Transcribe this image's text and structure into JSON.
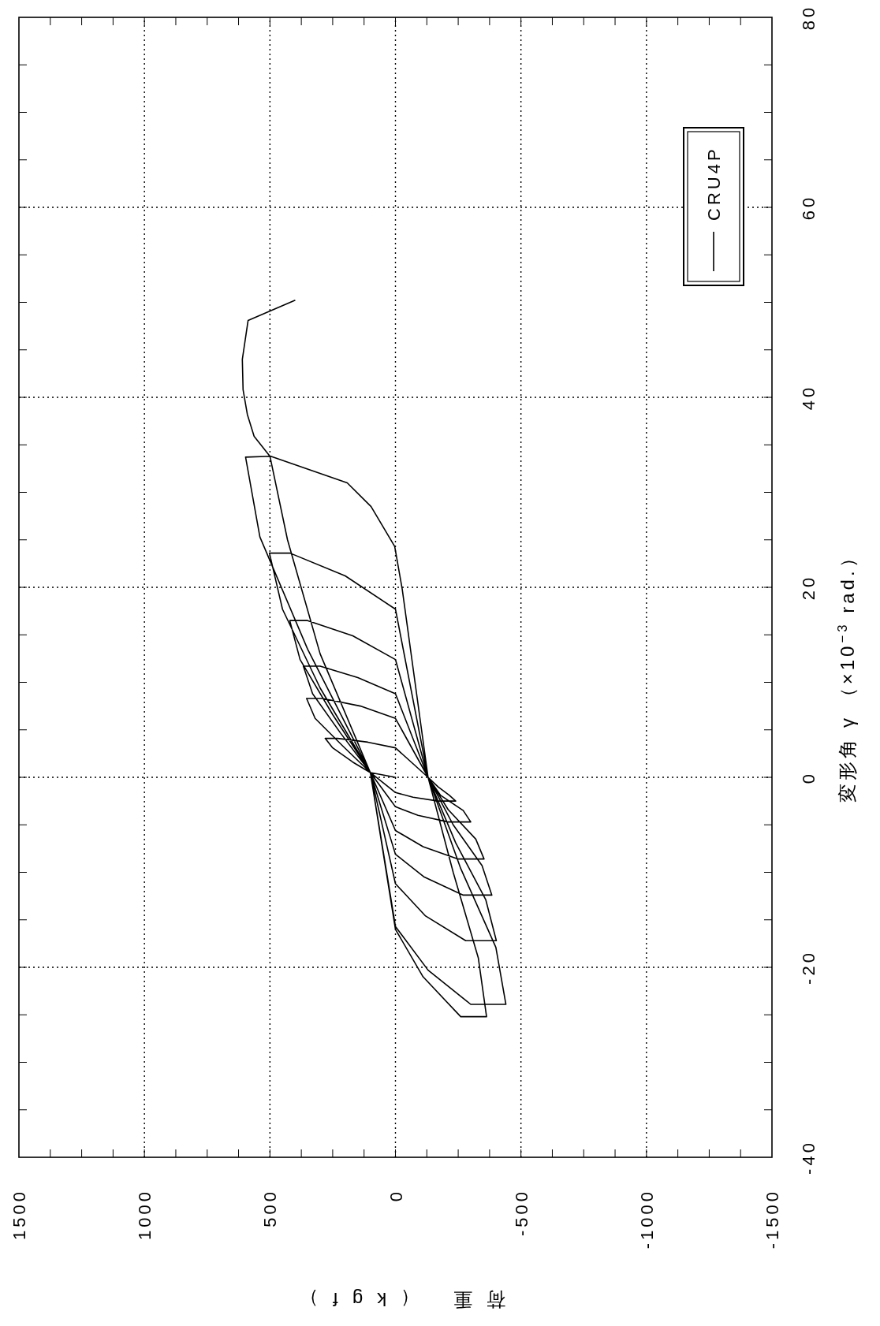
{
  "chart_data": {
    "type": "line",
    "xlabel": "荷重 （kgf）",
    "ylabel": "変形角 γ （×10$^{−3}$ rad.）",
    "xlim": [
      1500,
      -1500
    ],
    "ylim": [
      -40,
      80
    ],
    "xticks": [
      1500,
      {
        "value": 1375,
        "label": null
      },
      {
        "value": 1250,
        "label": null
      },
      {
        "value": 1125,
        "label": null
      },
      1000,
      {
        "value": 875,
        "label": null
      },
      {
        "value": 750,
        "label": null
      },
      {
        "value": 625,
        "label": null
      },
      500,
      {
        "value": 375,
        "label": null
      },
      {
        "value": 250,
        "label": null
      },
      {
        "value": 125,
        "label": null
      },
      0,
      {
        "value": -125,
        "label": null
      },
      {
        "value": -250,
        "label": null
      },
      {
        "value": -375,
        "label": null
      },
      -500,
      {
        "value": -625,
        "label": null
      },
      {
        "value": -750,
        "label": null
      },
      {
        "value": -875,
        "label": null
      },
      -1000,
      {
        "value": -1125,
        "label": null
      },
      {
        "value": -1250,
        "label": null
      },
      {
        "value": -1375,
        "label": null
      },
      -1500
    ],
    "yticks": [
      -40,
      {
        "value": -35,
        "label": null
      },
      {
        "value": -30,
        "label": null
      },
      {
        "value": -25,
        "label": null
      },
      -20,
      {
        "value": -15,
        "label": null
      },
      {
        "value": -10,
        "label": null
      },
      {
        "value": -5,
        "label": null
      },
      0,
      {
        "value": 5,
        "label": null
      },
      {
        "value": 10,
        "label": null
      },
      {
        "value": 15,
        "label": null
      },
      20,
      {
        "value": 25,
        "label": null
      },
      {
        "value": 30,
        "label": null
      },
      {
        "value": 35,
        "label": null
      },
      40,
      {
        "value": 45,
        "label": null
      },
      {
        "value": 50,
        "label": null
      },
      {
        "value": 55,
        "label": null
      },
      60,
      {
        "value": 65,
        "label": null
      },
      {
        "value": 70,
        "label": null
      },
      {
        "value": 75,
        "label": null
      },
      80
    ],
    "grid": true,
    "legend": "top right",
    "line_style": "solid",
    "series": [
      {
        "name": "CRU4P",
        "color": "#000000",
        "values": [
          0,
          0.5,
          1.6,
          3.1,
          4.1,
          4.1,
          3.7,
          3.1,
          0,
          -1.0,
          -1.9,
          -2.5,
          -2.5,
          -2.1,
          -1.6,
          0.5,
          1.6,
          3.1,
          4.1,
          4.1,
          3.7,
          3.1,
          0,
          -1.9,
          -3.5,
          -4.7,
          -4.7,
          -4.0,
          -3.1,
          0.5,
          3.3,
          6.2,
          8.3,
          8.3,
          7.5,
          6.2,
          0,
          -3.4,
          -6.5,
          -8.6,
          -8.6,
          -7.3,
          -5.6,
          0.5,
          4.7,
          8.8,
          11.7,
          11.7,
          10.5,
          8.8,
          0,
          -5.0,
          -9.3,
          -12.4,
          -12.4,
          -10.5,
          -8.1,
          0.5,
          6.6,
          12.4,
          16.5,
          16.5,
          14.9,
          12.4,
          0,
          -6.9,
          -12.9,
          -17.2,
          -17.2,
          -14.6,
          -11.2,
          0.5,
          9.4,
          17.7,
          23.6,
          23.6,
          21.2,
          17.7,
          0,
          -9.6,
          -17.9,
          -23.9,
          -23.9,
          -20.3,
          -15.7,
          0.5,
          13.5,
          25.3,
          33.7,
          33.8,
          31,
          28.5,
          24.3,
          19.8,
          0,
          -10,
          -19,
          -25.2,
          -25.2,
          -21,
          -16,
          0.5,
          13,
          25,
          33.8,
          35.9,
          38.2,
          40.8,
          44,
          48.1,
          50.2
        ],
        "x": [
          0,
          100,
          170,
          250,
          280,
          230,
          110,
          0,
          -130,
          -170,
          -215,
          -240,
          -170,
          -70,
          0,
          100,
          170,
          250,
          280,
          230,
          110,
          0,
          -130,
          -180,
          -270,
          -300,
          -210,
          -90,
          0,
          100,
          210,
          320,
          354,
          290,
          140,
          0,
          -130,
          -210,
          -320,
          -353,
          -250,
          -110,
          0,
          100,
          220,
          330,
          367,
          300,
          150,
          0,
          -130,
          -230,
          -345,
          -384,
          -270,
          -115,
          0,
          100,
          250,
          380,
          421,
          350,
          170,
          0,
          -130,
          -240,
          -360,
          -402,
          -280,
          -120,
          0,
          100,
          300,
          450,
          502,
          420,
          200,
          0,
          -130,
          -260,
          -400,
          -440,
          -300,
          -130,
          0,
          100,
          350,
          540,
          597,
          497,
          192,
          97,
          3,
          -27,
          -130,
          -230,
          -330,
          -363,
          -260,
          -110,
          0,
          100,
          300,
          430,
          500,
          563,
          590,
          607,
          610,
          587,
          401
        ]
      }
    ]
  }
}
